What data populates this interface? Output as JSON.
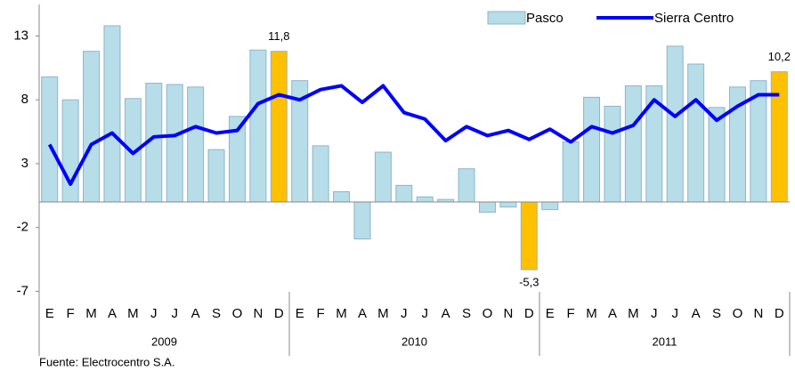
{
  "chart_data": {
    "type": "bar+line",
    "categories": [
      "E",
      "F",
      "M",
      "A",
      "M",
      "J",
      "J",
      "A",
      "S",
      "O",
      "N",
      "D",
      "E",
      "F",
      "M",
      "A",
      "M",
      "J",
      "J",
      "A",
      "S",
      "O",
      "N",
      "D",
      "E",
      "F",
      "M",
      "A",
      "M",
      "J",
      "J",
      "A",
      "S",
      "O",
      "N",
      "D"
    ],
    "groups": [
      "2009",
      "2010",
      "2011"
    ],
    "series": [
      {
        "name": "Pasco",
        "type": "bar",
        "color": "#b7dde8",
        "colors": [
          "#b7dde8",
          "#b7dde8",
          "#b7dde8",
          "#b7dde8",
          "#b7dde8",
          "#b7dde8",
          "#b7dde8",
          "#b7dde8",
          "#b7dde8",
          "#b7dde8",
          "#b7dde8",
          "#ffc000",
          "#b7dde8",
          "#b7dde8",
          "#b7dde8",
          "#b7dde8",
          "#b7dde8",
          "#b7dde8",
          "#b7dde8",
          "#b7dde8",
          "#b7dde8",
          "#b7dde8",
          "#b7dde8",
          "#ffc000",
          "#b7dde8",
          "#b7dde8",
          "#b7dde8",
          "#b7dde8",
          "#b7dde8",
          "#b7dde8",
          "#b7dde8",
          "#b7dde8",
          "#b7dde8",
          "#b7dde8",
          "#b7dde8",
          "#ffc000"
        ],
        "values": [
          9.8,
          8.0,
          11.8,
          13.8,
          8.1,
          9.3,
          9.2,
          9.0,
          4.1,
          6.7,
          11.9,
          11.8,
          9.5,
          4.4,
          0.8,
          -2.9,
          3.9,
          1.3,
          0.4,
          0.2,
          2.6,
          -0.8,
          -0.4,
          -5.3,
          -0.6,
          4.7,
          8.2,
          7.5,
          9.1,
          9.1,
          12.2,
          10.8,
          7.4,
          9.0,
          9.5,
          10.2
        ],
        "value_labels": [
          null,
          null,
          null,
          null,
          null,
          null,
          null,
          null,
          null,
          null,
          null,
          "11,8",
          null,
          null,
          null,
          null,
          null,
          null,
          null,
          null,
          null,
          null,
          null,
          "-5,3",
          null,
          null,
          null,
          null,
          null,
          null,
          null,
          null,
          null,
          null,
          null,
          "10,2"
        ]
      },
      {
        "name": "Sierra Centro",
        "type": "line",
        "color": "#0000ff",
        "values": [
          4.5,
          1.4,
          4.5,
          5.4,
          3.8,
          5.1,
          5.2,
          5.9,
          5.4,
          5.6,
          7.7,
          8.4,
          8.0,
          8.8,
          9.1,
          7.8,
          9.1,
          7.0,
          6.5,
          4.8,
          5.9,
          5.2,
          5.6,
          4.9,
          5.7,
          4.7,
          5.9,
          5.4,
          6.0,
          8.0,
          6.7,
          8.0,
          6.4,
          7.5,
          8.4,
          8.4
        ]
      }
    ],
    "ylim": [
      -7,
      15
    ],
    "yticks": [
      -7,
      -2,
      3,
      8,
      13
    ],
    "source": "Fuente: Electrocentro S.A.",
    "legend": "top-right"
  }
}
